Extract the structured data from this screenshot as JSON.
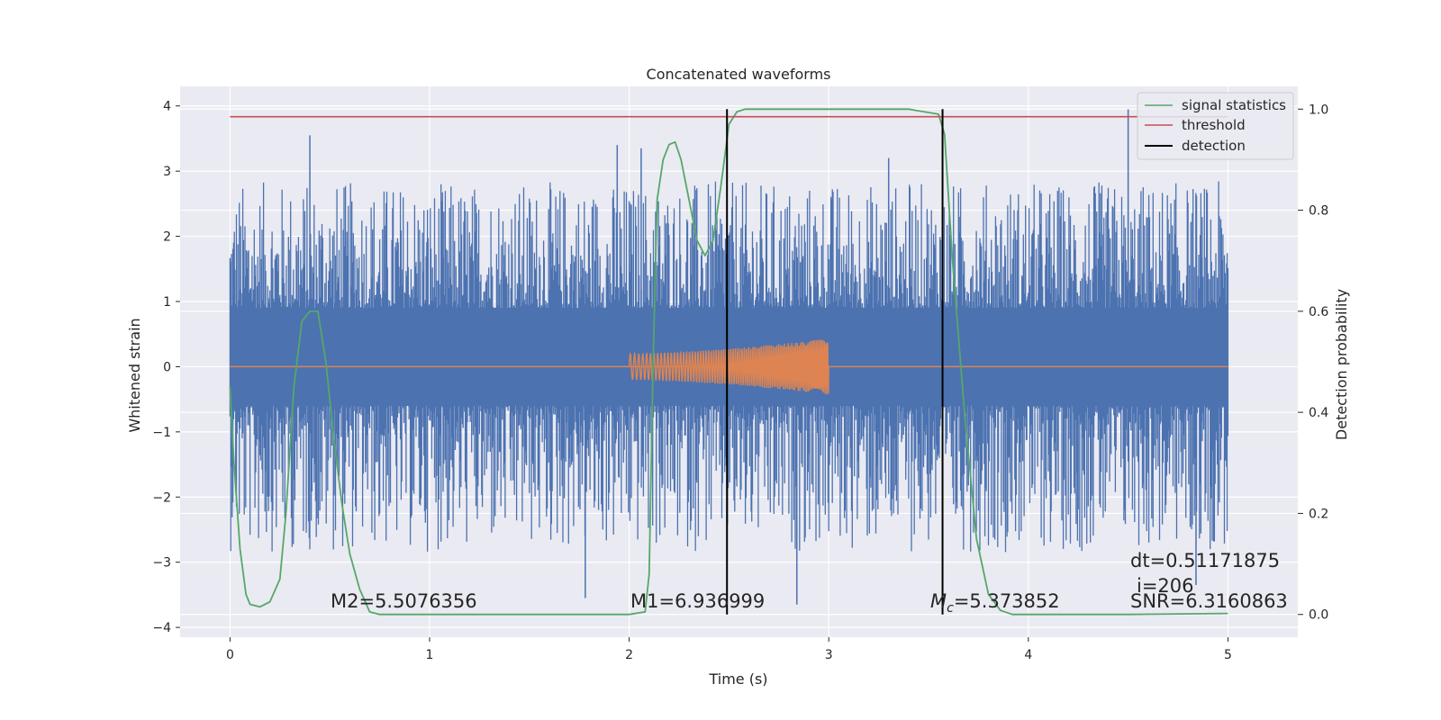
{
  "chart_data": {
    "type": "line",
    "title": "Concatenated waveforms",
    "xlabel": "Time (s)",
    "ylabel": "Whitened strain",
    "y2label": "Detection probability",
    "xlim": [
      -0.25,
      5.35
    ],
    "ylim": [
      -4.15,
      4.3
    ],
    "y2lim": [
      -0.045,
      1.045
    ],
    "xticks": [
      0,
      1,
      2,
      3,
      4,
      5
    ],
    "yticks": [
      -4,
      -3,
      -2,
      -1,
      0,
      1,
      2,
      3,
      4
    ],
    "y2ticks": [
      0.0,
      0.2,
      0.4,
      0.6,
      0.8,
      1.0
    ],
    "grid": true,
    "legend_position": "top-right",
    "legend": [
      "signal statistics",
      "threshold",
      "detection"
    ],
    "colors": {
      "noise": "#4c72b0",
      "template": "#dd8452",
      "signal_statistics": "#55a868",
      "threshold": "#c44e52",
      "detection": "#000000",
      "background": "#eaeaf2"
    },
    "noise": {
      "x_range": [
        0,
        5
      ],
      "envelope": [
        0.9,
        -0.6
      ],
      "peak_max": 3.95,
      "peak_min": -3.65
    },
    "template": {
      "x_range": [
        2.0,
        3.0
      ],
      "amplitude_start": 0.2,
      "amplitude_end": 0.43
    },
    "threshold": {
      "value": 0.985,
      "x_range": [
        0,
        5
      ]
    },
    "detections": [
      2.49,
      3.57
    ],
    "signal_statistics": {
      "x": [
        0,
        0.02,
        0.05,
        0.08,
        0.1,
        0.15,
        0.2,
        0.25,
        0.28,
        0.32,
        0.36,
        0.4,
        0.44,
        0.48,
        0.52,
        0.56,
        0.6,
        0.65,
        0.7,
        0.75,
        0.8,
        1.0,
        1.5,
        2.0,
        2.08,
        2.1,
        2.12,
        2.14,
        2.17,
        2.2,
        2.23,
        2.26,
        2.3,
        2.34,
        2.38,
        2.42,
        2.46,
        2.5,
        2.54,
        2.58,
        2.65,
        3.0,
        3.4,
        3.55,
        3.58,
        3.62,
        3.68,
        3.74,
        3.8,
        3.86,
        3.92,
        4.0,
        4.5,
        5.0
      ],
      "y": [
        0.45,
        0.3,
        0.13,
        0.04,
        0.02,
        0.015,
        0.025,
        0.07,
        0.2,
        0.45,
        0.58,
        0.6,
        0.6,
        0.5,
        0.35,
        0.22,
        0.12,
        0.05,
        0.005,
        0.0,
        0.0,
        0.0,
        0.0,
        0.0,
        0.005,
        0.08,
        0.5,
        0.82,
        0.9,
        0.93,
        0.935,
        0.9,
        0.82,
        0.74,
        0.71,
        0.74,
        0.85,
        0.97,
        0.995,
        1.0,
        1.0,
        1.0,
        1.0,
        0.99,
        0.95,
        0.7,
        0.4,
        0.15,
        0.04,
        0.008,
        0.0,
        0.0,
        0.0,
        0.002
      ]
    },
    "annotations": {
      "m2": "M2=5.5076356",
      "m1": "M1=6.936999",
      "mc_symbol": "M",
      "mc_sub": "c",
      "mc_value": "=5.373852",
      "dt": "dt=0.51171875",
      "i": "i=206",
      "snr": "SNR=6.3160863"
    }
  }
}
